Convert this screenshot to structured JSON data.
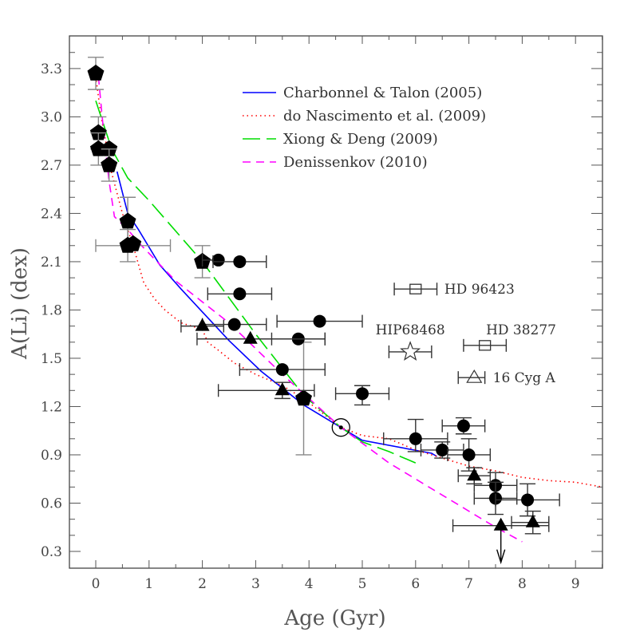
{
  "chart_data": {
    "type": "scatter",
    "xlabel": "Age (Gyr)",
    "ylabel": "A(Li) (dex)",
    "xlim": [
      -0.5,
      9.5
    ],
    "ylim": [
      0.2,
      3.45
    ],
    "xticks": [
      "0",
      "1",
      "2",
      "3",
      "4",
      "5",
      "6",
      "7",
      "8",
      "9"
    ],
    "yticks": [
      "0.3",
      "0.6",
      "0.9",
      "1.2",
      "1.5",
      "1.8",
      "2.1",
      "2.4",
      "2.7",
      "3.0",
      "3.3"
    ],
    "grid": false,
    "legend_position": "top-right",
    "models": [
      {
        "name": "Charbonnel & Talon (2005)",
        "color": "#0000ff",
        "style": "solid",
        "x": [
          0.4,
          0.6,
          0.8,
          1.2,
          1.6,
          2.5,
          3.1,
          3.9,
          4.6,
          5.0,
          6.3,
          6.4
        ],
        "y": [
          2.66,
          2.4,
          2.3,
          2.08,
          1.93,
          1.61,
          1.42,
          1.21,
          1.07,
          0.99,
          0.91,
          0.89
        ]
      },
      {
        "name": "do Nascimento et al. (2009)",
        "color": "#ff0000",
        "style": "dotted",
        "x": [
          0,
          0.1,
          0.3,
          0.5,
          0.7,
          0.9,
          1.1,
          1.3,
          1.6,
          2.0,
          2.1,
          2.3,
          2.6,
          3.0,
          3.5,
          3.9,
          4.6,
          5.0,
          5.5,
          6.0,
          6.5,
          7.0,
          7.5,
          8.0,
          8.5,
          9.0,
          9.5
        ],
        "y": [
          3.25,
          3.0,
          2.65,
          2.4,
          2.2,
          1.97,
          1.87,
          1.8,
          1.72,
          1.68,
          1.6,
          1.55,
          1.47,
          1.4,
          1.33,
          1.25,
          1.07,
          1.02,
          1.0,
          0.93,
          0.88,
          0.83,
          0.8,
          0.76,
          0.74,
          0.73,
          0.7
        ]
      },
      {
        "name": "Xiong & Deng (2009)",
        "color": "#00dd00",
        "style": "longdash",
        "x": [
          0,
          0.3,
          0.6,
          1.0,
          2.0,
          3.0,
          3.9,
          4.6,
          5.0,
          5.5,
          6.0
        ],
        "y": [
          3.1,
          2.8,
          2.62,
          2.48,
          2.1,
          1.65,
          1.27,
          1.07,
          0.98,
          0.92,
          0.85
        ]
      },
      {
        "name": "Denissenkov (2010)",
        "color": "#ff00ff",
        "style": "dashed",
        "x": [
          0.05,
          0.15,
          0.25,
          0.35,
          0.6,
          0.8,
          1.5,
          2.5,
          3.5,
          4.6,
          5.5,
          6.5,
          7.5,
          8.0
        ],
        "y": [
          3.25,
          2.9,
          2.6,
          2.38,
          2.3,
          2.22,
          1.98,
          1.72,
          1.4,
          1.07,
          0.85,
          0.65,
          0.45,
          0.36
        ]
      }
    ],
    "stars": [
      {
        "marker": "pentagon",
        "x": 0.0,
        "y": 3.27,
        "xerr": [
          0,
          0
        ],
        "yerr": [
          0.1,
          0.1
        ]
      },
      {
        "marker": "pentagon",
        "x": 0.05,
        "y": 2.9,
        "xerr": [
          0,
          0
        ],
        "yerr": [
          0.1,
          0.1
        ]
      },
      {
        "marker": "pentagon",
        "x": 0.05,
        "y": 2.8,
        "xerr": [
          0,
          0
        ],
        "yerr": [
          0.1,
          0.1
        ]
      },
      {
        "marker": "pentagon",
        "x": 0.25,
        "y": 2.8,
        "xerr": [
          0,
          0
        ],
        "yerr": [
          0,
          0
        ]
      },
      {
        "marker": "pentagon",
        "x": 0.25,
        "y": 2.7,
        "xerr": [
          0,
          0
        ],
        "yerr": [
          0.1,
          0.1
        ]
      },
      {
        "marker": "pentagon",
        "x": 0.6,
        "y": 2.35,
        "xerr": [
          0,
          0
        ],
        "yerr": [
          0.15,
          0.15
        ]
      },
      {
        "marker": "pentagon",
        "x": 0.6,
        "y": 2.2,
        "xerr": [
          0.6,
          0.8
        ],
        "yerr": [
          0.1,
          0.1
        ]
      },
      {
        "marker": "pentagon",
        "x": 0.7,
        "y": 2.21,
        "xerr": [
          0,
          0
        ],
        "yerr": [
          0,
          0
        ]
      },
      {
        "marker": "pentagon",
        "x": 2.0,
        "y": 2.1,
        "xerr": [
          0,
          0
        ],
        "yerr": [
          0.1,
          0.1
        ]
      },
      {
        "marker": "pentagon",
        "x": 3.9,
        "y": 1.25,
        "xerr": [
          0,
          0
        ],
        "yerr": [
          0.35,
          0.35
        ]
      },
      {
        "marker": "circle",
        "x": 2.3,
        "y": 2.11,
        "xerr": [
          0.3,
          0
        ],
        "yerr": [
          0,
          0
        ]
      },
      {
        "marker": "circle",
        "x": 2.7,
        "y": 2.1,
        "xerr": [
          0.5,
          0.5
        ],
        "yerr": [
          0,
          0
        ]
      },
      {
        "marker": "circle",
        "x": 2.7,
        "y": 1.9,
        "xerr": [
          0.6,
          0.6
        ],
        "yerr": [
          0,
          0
        ]
      },
      {
        "marker": "circle",
        "x": 2.6,
        "y": 1.71,
        "xerr": [
          0.6,
          0.6
        ],
        "yerr": [
          0,
          0
        ]
      },
      {
        "marker": "circle",
        "x": 4.2,
        "y": 1.73,
        "xerr": [
          0.8,
          0.8
        ],
        "yerr": [
          0,
          0
        ]
      },
      {
        "marker": "circle",
        "x": 3.8,
        "y": 1.62,
        "xerr": [
          0.5,
          0.5
        ],
        "yerr": [
          0,
          0
        ]
      },
      {
        "marker": "circle",
        "x": 3.5,
        "y": 1.43,
        "xerr": [
          0.8,
          0.8
        ],
        "yerr": [
          0,
          0
        ]
      },
      {
        "marker": "circle",
        "x": 5.0,
        "y": 1.28,
        "xerr": [
          0.5,
          0.5
        ],
        "yerr": [
          0.07,
          0.05
        ]
      },
      {
        "marker": "circle",
        "x": 6.0,
        "y": 1.0,
        "xerr": [
          0.6,
          0.6
        ],
        "yerr": [
          0.08,
          0.12
        ]
      },
      {
        "marker": "circle",
        "x": 6.5,
        "y": 0.93,
        "xerr": [
          0.4,
          0.4
        ],
        "yerr": [
          0.05,
          0.05
        ]
      },
      {
        "marker": "circle",
        "x": 6.9,
        "y": 1.08,
        "xerr": [
          0.4,
          0.4
        ],
        "yerr": [
          0.05,
          0.05
        ]
      },
      {
        "marker": "circle",
        "x": 7.0,
        "y": 0.9,
        "xerr": [
          0.4,
          0.4
        ],
        "yerr": [
          0.1,
          0.1
        ]
      },
      {
        "marker": "circle",
        "x": 7.5,
        "y": 0.71,
        "xerr": [
          0.4,
          0.4
        ],
        "yerr": [
          0.08,
          0.08
        ]
      },
      {
        "marker": "circle",
        "x": 7.5,
        "y": 0.63,
        "xerr": [
          0.4,
          0.4
        ],
        "yerr": [
          0.1,
          0.1
        ]
      },
      {
        "marker": "circle",
        "x": 8.1,
        "y": 0.62,
        "xerr": [
          0.6,
          0.6
        ],
        "yerr": [
          0.1,
          0.1
        ]
      },
      {
        "marker": "triangle",
        "x": 2.0,
        "y": 1.7,
        "xerr": [
          0.4,
          0.4
        ],
        "yerr": [
          0,
          0
        ]
      },
      {
        "marker": "triangle",
        "x": 2.9,
        "y": 1.62,
        "xerr": [
          1.0,
          1.4
        ],
        "yerr": [
          0,
          0
        ]
      },
      {
        "marker": "triangle",
        "x": 3.5,
        "y": 1.3,
        "xerr": [
          1.2,
          0.6
        ],
        "yerr": [
          0.05,
          0.05
        ]
      },
      {
        "marker": "triangle",
        "x": 7.1,
        "y": 0.77,
        "xerr": [
          0.3,
          0.3
        ],
        "yerr": [
          0.05,
          0.05
        ]
      },
      {
        "marker": "triangle",
        "x": 7.6,
        "y": 0.46,
        "xerr": [
          0.9,
          0.9
        ],
        "yerr": [
          0,
          0
        ],
        "upper_limit": true
      },
      {
        "marker": "triangle",
        "x": 8.2,
        "y": 0.48,
        "xerr": [
          0.4,
          0.3
        ],
        "yerr": [
          0.07,
          0.07
        ]
      },
      {
        "marker": "sun",
        "x": 4.6,
        "y": 1.07,
        "xerr": [
          0,
          0
        ],
        "yerr": [
          0,
          0
        ]
      }
    ],
    "labeled_stars": [
      {
        "label": "HD 96423",
        "marker": "open-square",
        "x": 6.0,
        "y": 1.93,
        "xerr": [
          0.4,
          0.4
        ]
      },
      {
        "label": "HIP68468",
        "marker": "open-star",
        "x": 5.9,
        "y": 1.54,
        "xerr": [
          0.4,
          0.4
        ]
      },
      {
        "label": "HD 38277",
        "marker": "open-square",
        "x": 7.3,
        "y": 1.58,
        "xerr": [
          0.4,
          0.4
        ]
      },
      {
        "label": "16 Cyg A",
        "marker": "open-triangle",
        "x": 7.1,
        "y": 1.38,
        "xerr": [
          0.3,
          0.2
        ]
      }
    ]
  }
}
